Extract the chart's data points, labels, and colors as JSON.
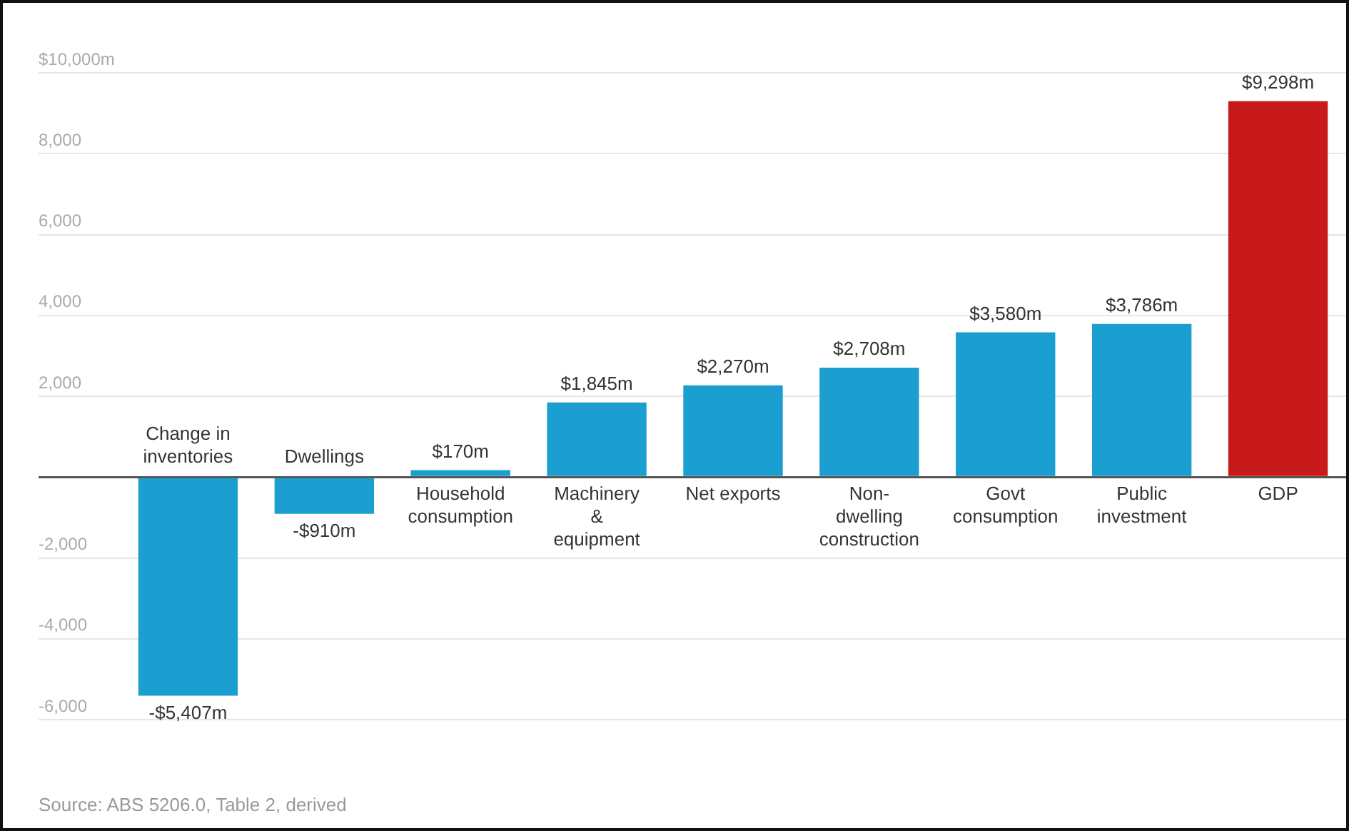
{
  "chart_data": {
    "type": "bar",
    "categories": [
      "Change in inventories",
      "Dwellings",
      "Household consumption",
      "Machinery & equipment",
      "Net exports",
      "Non-dwelling construction",
      "Govt consumption",
      "Public investment",
      "GDP"
    ],
    "values": [
      -5407,
      -910,
      170,
      1845,
      2270,
      2708,
      3580,
      3786,
      9298
    ],
    "colors": [
      "#1a9fd0",
      "#1a9fd0",
      "#1a9fd0",
      "#1a9fd0",
      "#1a9fd0",
      "#1a9fd0",
      "#1a9fd0",
      "#1a9fd0",
      "#c8191b"
    ],
    "value_labels": [
      "-$5,407m",
      "-$910m",
      "$170m",
      "$1,845m",
      "$2,270m",
      "$2,708m",
      "$3,580m",
      "$3,786m",
      "$9,298m"
    ],
    "ylim": [
      -6000,
      10000
    ],
    "yticks": [
      {
        "value": -6000,
        "label": "-6,000"
      },
      {
        "value": -4000,
        "label": "-4,000"
      },
      {
        "value": -2000,
        "label": "-2,000"
      },
      {
        "value": 0,
        "label": null
      },
      {
        "value": 2000,
        "label": "2,000"
      },
      {
        "value": 4000,
        "label": "4,000"
      },
      {
        "value": 6000,
        "label": "6,000"
      },
      {
        "value": 8000,
        "label": "8,000"
      },
      {
        "value": 10000,
        "label": "$10,000m"
      }
    ],
    "grid": "y",
    "annotations": [
      "Source: ABS 5206.0, Table 2, derived"
    ]
  }
}
